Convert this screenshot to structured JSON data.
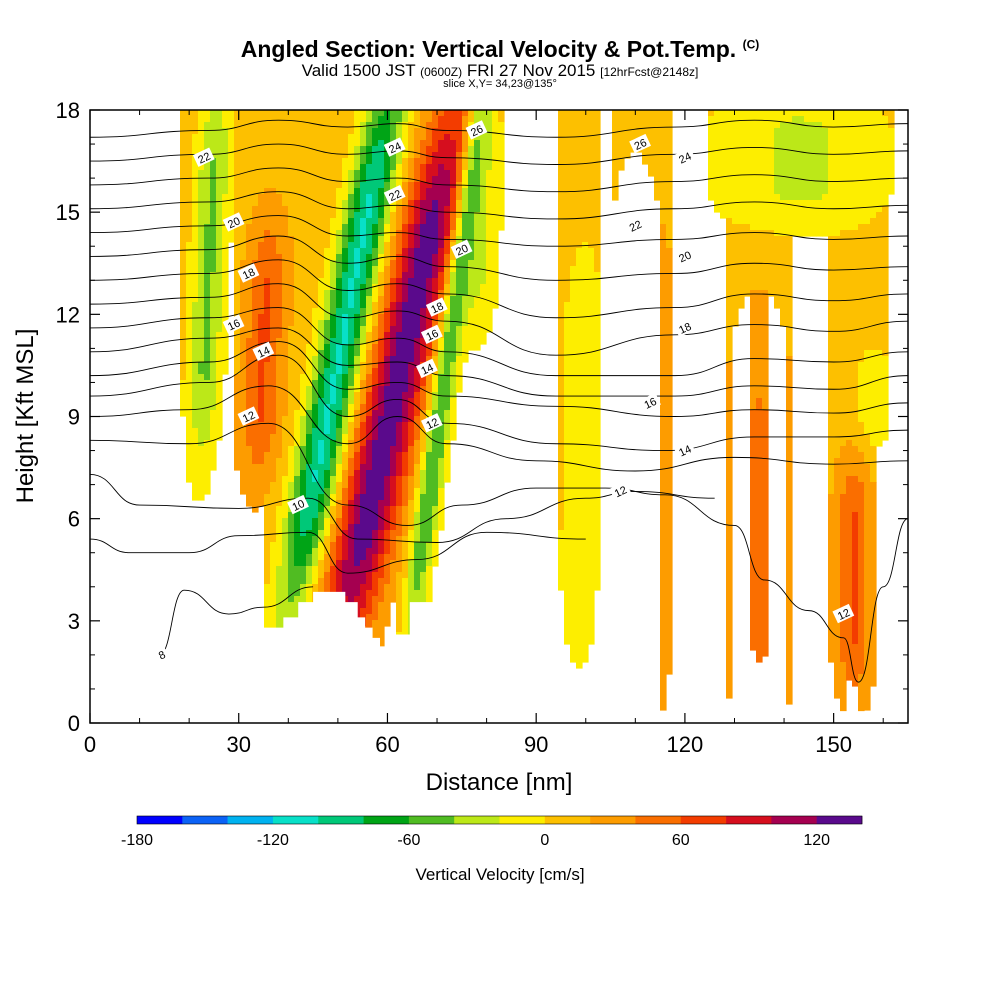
{
  "header": {
    "title": "Angled Section: Vertical Velocity & Pot.Temp.",
    "title_unit": "(C)",
    "subtitle_valid": "Valid 1500 JST",
    "subtitle_z": "(0600Z)",
    "subtitle_date": "FRI 27 Nov 2015",
    "subtitle_fcst": "[12hrFcst@2148z]",
    "slice": "slice X,Y= 34,23@135°"
  },
  "chart_data": {
    "type": "heatmap",
    "title": "Angled Section: Vertical Velocity & Pot.Temp.",
    "xlabel": "Distance [nm]",
    "ylabel": "Height [Kft MSL]",
    "xlim": [
      0,
      165
    ],
    "ylim": [
      0,
      18
    ],
    "xticks": [
      0,
      30,
      60,
      90,
      120,
      150
    ],
    "yticks": [
      0,
      3,
      6,
      9,
      12,
      15,
      18
    ],
    "colorbar": {
      "label": "Vertical Velocity [cm/s]",
      "ticks": [
        -180,
        -120,
        -60,
        0,
        60,
        120
      ],
      "levels": [
        -180,
        -160,
        -140,
        -120,
        -100,
        -80,
        -60,
        -40,
        -20,
        0,
        20,
        40,
        60,
        80,
        100,
        120,
        140
      ],
      "colors": [
        "#0000ff",
        "#0b62f6",
        "#00b2f0",
        "#08e0c8",
        "#00c878",
        "#00a416",
        "#50bc22",
        "#bce818",
        "#fdee00",
        "#fdc000",
        "#fd9c00",
        "#fa6e00",
        "#f33c00",
        "#d60e1e",
        "#a50050",
        "#5a0a8c"
      ]
    },
    "wind_bands": [
      {
        "x": 24,
        "halfwidth": 3.5,
        "z_bottom": 8.5,
        "z_top": 18,
        "peak": -55,
        "lean": 0.05
      },
      {
        "x": 35,
        "halfwidth": 4,
        "z_bottom": 8,
        "z_top": 14,
        "peak": 50,
        "lean": 0.05
      },
      {
        "x": 51,
        "halfwidth": 4.5,
        "z_bottom": 4.5,
        "z_top": 18,
        "peak": -115,
        "lean": 0.22
      },
      {
        "x": 62,
        "halfwidth": 6,
        "z_bottom": 3,
        "z_top": 17,
        "peak": 120,
        "lean": 0.25
      },
      {
        "x": 72,
        "halfwidth": 2.5,
        "z_bottom": 3.5,
        "z_top": 18,
        "peak": -75,
        "lean": 0.15
      },
      {
        "x": 79,
        "halfwidth": 4,
        "z_bottom": 12,
        "z_top": 18,
        "peak": -35,
        "lean": 0.05
      },
      {
        "x": 100,
        "halfwidth": 5,
        "z_bottom": 2.5,
        "z_top": 13.5,
        "peak": -30,
        "lean": 0.02
      },
      {
        "x": 110,
        "halfwidth": 7,
        "z_bottom": 1,
        "z_top": 15,
        "peak": 28,
        "lean": 0.0
      },
      {
        "x": 135,
        "halfwidth": 6,
        "z_bottom": 0.3,
        "z_top": 11,
        "peak": 30,
        "lean": 0.0
      },
      {
        "x": 154,
        "halfwidth": 3.5,
        "z_bottom": 1.5,
        "z_top": 7,
        "peak": 50,
        "lean": 0.0
      },
      {
        "x": 158,
        "halfwidth": 4,
        "z_bottom": 8.5,
        "z_top": 10.5,
        "peak": -25,
        "lean": 0.0
      },
      {
        "x": 143,
        "halfwidth": 18,
        "z_bottom": 15,
        "z_top": 18,
        "peak": -35,
        "lean": 0.0
      }
    ],
    "background_velocity": 12,
    "terrain": [
      {
        "x": 0,
        "z": 0.35
      },
      {
        "x": 10,
        "z": 0.35
      },
      {
        "x": 10,
        "z": 0.65
      },
      {
        "x": 16,
        "z": 0.65
      },
      {
        "x": 16,
        "z": 1.0
      },
      {
        "x": 19,
        "z": 1.0
      },
      {
        "x": 19,
        "z": 1.3
      },
      {
        "x": 22,
        "z": 1.3
      },
      {
        "x": 22,
        "z": 1.6
      },
      {
        "x": 29,
        "z": 1.6
      },
      {
        "x": 29,
        "z": 1.9
      },
      {
        "x": 32,
        "z": 1.9
      },
      {
        "x": 32,
        "z": 2.5
      },
      {
        "x": 35,
        "z": 2.5
      },
      {
        "x": 35,
        "z": 2.8
      },
      {
        "x": 39,
        "z": 2.8
      },
      {
        "x": 39,
        "z": 3.1
      },
      {
        "x": 42,
        "z": 3.1
      },
      {
        "x": 42,
        "z": 3.55
      },
      {
        "x": 45,
        "z": 3.55
      },
      {
        "x": 45,
        "z": 3.85
      },
      {
        "x": 51.5,
        "z": 3.85
      },
      {
        "x": 51.5,
        "z": 3.55
      },
      {
        "x": 54,
        "z": 3.55
      },
      {
        "x": 54,
        "z": 3.1
      },
      {
        "x": 55.5,
        "z": 3.1
      },
      {
        "x": 55.5,
        "z": 2.8
      },
      {
        "x": 57,
        "z": 2.8
      },
      {
        "x": 57,
        "z": 2.5
      },
      {
        "x": 58.5,
        "z": 2.5
      },
      {
        "x": 58.5,
        "z": 2.25
      },
      {
        "x": 61.5,
        "z": 2.25
      },
      {
        "x": 61.5,
        "z": 2.6
      },
      {
        "x": 64.5,
        "z": 2.6
      },
      {
        "x": 64.5,
        "z": 3.55
      },
      {
        "x": 70.5,
        "z": 3.55
      },
      {
        "x": 70.5,
        "z": 3.1
      },
      {
        "x": 73.5,
        "z": 3.1
      },
      {
        "x": 73.5,
        "z": 1.9
      },
      {
        "x": 76.5,
        "z": 1.9
      },
      {
        "x": 76.5,
        "z": 1.6
      },
      {
        "x": 79.5,
        "z": 1.6
      },
      {
        "x": 79.5,
        "z": 1.3
      },
      {
        "x": 82.5,
        "z": 1.3
      },
      {
        "x": 82.5,
        "z": 1.0
      },
      {
        "x": 85.5,
        "z": 1.0
      },
      {
        "x": 85.5,
        "z": 0.65
      },
      {
        "x": 88.5,
        "z": 0.65
      },
      {
        "x": 88.5,
        "z": 0.35
      },
      {
        "x": 165,
        "z": 0.35
      }
    ],
    "isentropes": [
      {
        "level": 8,
        "points": [
          [
            14,
            2.0
          ],
          [
            19,
            3.9
          ],
          [
            28,
            3.2
          ],
          [
            35,
            3.4
          ],
          [
            45,
            4.0
          ]
        ]
      },
      {
        "level": 10,
        "points": [
          [
            0,
            5.4
          ],
          [
            8,
            5.0
          ],
          [
            20,
            5.0
          ],
          [
            30,
            5.5
          ],
          [
            44,
            5.6
          ],
          [
            52,
            4.4
          ],
          [
            66,
            4.8
          ],
          [
            80,
            5.6
          ],
          [
            100,
            5.4
          ]
        ]
      },
      {
        "level": 10,
        "points": [
          [
            0,
            7.3
          ],
          [
            10,
            6.4
          ],
          [
            30,
            6.3
          ],
          [
            44,
            6.6
          ],
          [
            54,
            5.4
          ],
          [
            70,
            5.3
          ],
          [
            84,
            6.0
          ],
          [
            100,
            6.6
          ],
          [
            110,
            6.8
          ],
          [
            126,
            6.6
          ]
        ]
      },
      {
        "level": 12,
        "points": [
          [
            0,
            8.3
          ],
          [
            20,
            8.2
          ],
          [
            36,
            8.8
          ],
          [
            52,
            6.4
          ],
          [
            64,
            5.8
          ],
          [
            75,
            6.4
          ],
          [
            90,
            6.9
          ],
          [
            104,
            6.9
          ],
          [
            116,
            6.7
          ],
          [
            130,
            5.8
          ],
          [
            136,
            4.2
          ],
          [
            145,
            3.3
          ],
          [
            152,
            2.5
          ],
          [
            155,
            1.2
          ],
          [
            160,
            4.0
          ],
          [
            165,
            6.0
          ]
        ]
      },
      {
        "level": 12,
        "points": [
          [
            0,
            9.0
          ],
          [
            20,
            9.2
          ],
          [
            36,
            9.9
          ],
          [
            52,
            8.2
          ],
          [
            62,
            9.0
          ],
          [
            72,
            8.2
          ],
          [
            90,
            7.7
          ],
          [
            110,
            7.4
          ],
          [
            130,
            7.8
          ],
          [
            150,
            7.6
          ],
          [
            165,
            7.7
          ]
        ]
      },
      {
        "level": 14,
        "points": [
          [
            0,
            9.6
          ],
          [
            24,
            10.0
          ],
          [
            38,
            10.8
          ],
          [
            52,
            9.0
          ],
          [
            62,
            9.5
          ],
          [
            72,
            8.8
          ],
          [
            94,
            8.2
          ],
          [
            116,
            8.0
          ],
          [
            134,
            8.4
          ],
          [
            150,
            8.4
          ],
          [
            165,
            8.6
          ]
        ]
      },
      {
        "level": 14,
        "points": [
          [
            0,
            10.2
          ],
          [
            24,
            10.6
          ],
          [
            38,
            11.2
          ],
          [
            52,
            9.8
          ],
          [
            62,
            10.0
          ],
          [
            72,
            9.6
          ],
          [
            94,
            9.3
          ],
          [
            118,
            9.0
          ],
          [
            134,
            9.2
          ],
          [
            150,
            9.1
          ],
          [
            165,
            9.4
          ]
        ]
      },
      {
        "level": 16,
        "points": [
          [
            0,
            10.9
          ],
          [
            24,
            11.3
          ],
          [
            38,
            11.6
          ],
          [
            52,
            10.5
          ],
          [
            62,
            10.6
          ],
          [
            72,
            10.2
          ],
          [
            94,
            9.6
          ],
          [
            118,
            9.6
          ],
          [
            134,
            9.9
          ],
          [
            150,
            9.8
          ],
          [
            165,
            10.2
          ]
        ]
      },
      {
        "level": 16,
        "points": [
          [
            0,
            11.6
          ],
          [
            24,
            11.9
          ],
          [
            38,
            12.2
          ],
          [
            52,
            11.1
          ],
          [
            62,
            11.3
          ],
          [
            72,
            10.9
          ],
          [
            94,
            10.2
          ],
          [
            118,
            10.2
          ],
          [
            134,
            10.7
          ],
          [
            150,
            10.6
          ],
          [
            165,
            10.9
          ]
        ]
      },
      {
        "level": 18,
        "points": [
          [
            0,
            12.3
          ],
          [
            24,
            12.5
          ],
          [
            38,
            12.9
          ],
          [
            52,
            11.9
          ],
          [
            62,
            12.1
          ],
          [
            72,
            11.8
          ],
          [
            94,
            10.8
          ],
          [
            118,
            11.4
          ],
          [
            134,
            11.7
          ],
          [
            150,
            11.5
          ],
          [
            165,
            11.8
          ]
        ]
      },
      {
        "level": 18,
        "points": [
          [
            0,
            13.0
          ],
          [
            24,
            13.2
          ],
          [
            38,
            13.6
          ],
          [
            52,
            12.7
          ],
          [
            62,
            12.9
          ],
          [
            72,
            12.6
          ],
          [
            94,
            11.9
          ],
          [
            118,
            12.2
          ],
          [
            134,
            12.6
          ],
          [
            150,
            12.4
          ],
          [
            165,
            12.6
          ]
        ]
      },
      {
        "level": 20,
        "points": [
          [
            0,
            13.7
          ],
          [
            24,
            13.9
          ],
          [
            38,
            14.3
          ],
          [
            52,
            13.5
          ],
          [
            62,
            13.7
          ],
          [
            72,
            13.4
          ],
          [
            94,
            13.0
          ],
          [
            118,
            13.2
          ],
          [
            134,
            13.5
          ],
          [
            150,
            13.3
          ],
          [
            165,
            13.4
          ]
        ]
      },
      {
        "level": 20,
        "points": [
          [
            0,
            14.4
          ],
          [
            24,
            14.6
          ],
          [
            38,
            14.9
          ],
          [
            52,
            14.3
          ],
          [
            62,
            14.4
          ],
          [
            72,
            14.2
          ],
          [
            94,
            14.0
          ],
          [
            118,
            14.2
          ],
          [
            134,
            14.4
          ],
          [
            150,
            14.2
          ],
          [
            165,
            14.3
          ]
        ]
      },
      {
        "level": 22,
        "points": [
          [
            0,
            15.1
          ],
          [
            24,
            15.3
          ],
          [
            38,
            15.6
          ],
          [
            52,
            15.1
          ],
          [
            62,
            15.2
          ],
          [
            72,
            15.0
          ],
          [
            94,
            14.8
          ],
          [
            118,
            15.1
          ],
          [
            134,
            15.3
          ],
          [
            150,
            15.1
          ],
          [
            165,
            15.2
          ]
        ]
      },
      {
        "level": 22,
        "points": [
          [
            0,
            15.8
          ],
          [
            24,
            16.0
          ],
          [
            38,
            16.3
          ],
          [
            52,
            15.9
          ],
          [
            62,
            16.0
          ],
          [
            72,
            15.8
          ],
          [
            94,
            15.6
          ],
          [
            118,
            15.9
          ],
          [
            134,
            16.1
          ],
          [
            150,
            15.9
          ],
          [
            165,
            16.0
          ]
        ]
      },
      {
        "level": 24,
        "points": [
          [
            0,
            16.5
          ],
          [
            24,
            16.7
          ],
          [
            38,
            17.0
          ],
          [
            52,
            16.7
          ],
          [
            62,
            16.8
          ],
          [
            72,
            16.6
          ],
          [
            94,
            16.4
          ],
          [
            118,
            16.7
          ],
          [
            134,
            16.9
          ],
          [
            150,
            16.7
          ],
          [
            165,
            16.8
          ]
        ]
      },
      {
        "level": 26,
        "points": [
          [
            0,
            17.2
          ],
          [
            24,
            17.4
          ],
          [
            38,
            17.7
          ],
          [
            52,
            17.5
          ],
          [
            62,
            17.6
          ],
          [
            72,
            17.4
          ],
          [
            94,
            17.2
          ],
          [
            118,
            17.5
          ],
          [
            134,
            17.7
          ],
          [
            150,
            17.5
          ],
          [
            165,
            17.6
          ]
        ]
      }
    ],
    "contour_labels": [
      {
        "text": "8",
        "x": 14.5,
        "z": 2.0
      },
      {
        "text": "10",
        "x": 42,
        "z": 6.4
      },
      {
        "text": "12",
        "x": 32,
        "z": 9.0
      },
      {
        "text": "14",
        "x": 35,
        "z": 10.9
      },
      {
        "text": "16",
        "x": 29,
        "z": 11.7
      },
      {
        "text": "18",
        "x": 32,
        "z": 13.2
      },
      {
        "text": "20",
        "x": 29,
        "z": 14.7
      },
      {
        "text": "22",
        "x": 23,
        "z": 16.6
      },
      {
        "text": "24",
        "x": 61.5,
        "z": 16.9
      },
      {
        "text": "22",
        "x": 61.5,
        "z": 15.5
      },
      {
        "text": "26",
        "x": 78,
        "z": 17.4
      },
      {
        "text": "20",
        "x": 75,
        "z": 13.9
      },
      {
        "text": "18",
        "x": 70,
        "z": 12.2
      },
      {
        "text": "16",
        "x": 69,
        "z": 11.4
      },
      {
        "text": "14",
        "x": 68,
        "z": 10.4
      },
      {
        "text": "12",
        "x": 69,
        "z": 8.8
      },
      {
        "text": "26",
        "x": 111,
        "z": 17.0
      },
      {
        "text": "24",
        "x": 120,
        "z": 16.6
      },
      {
        "text": "22",
        "x": 110,
        "z": 14.6
      },
      {
        "text": "20",
        "x": 120,
        "z": 13.7
      },
      {
        "text": "18",
        "x": 120,
        "z": 11.6
      },
      {
        "text": "16",
        "x": 113,
        "z": 9.4
      },
      {
        "text": "14",
        "x": 120,
        "z": 8.0
      },
      {
        "text": "12",
        "x": 107,
        "z": 6.8
      },
      {
        "text": "12",
        "x": 152,
        "z": 3.2
      }
    ]
  }
}
